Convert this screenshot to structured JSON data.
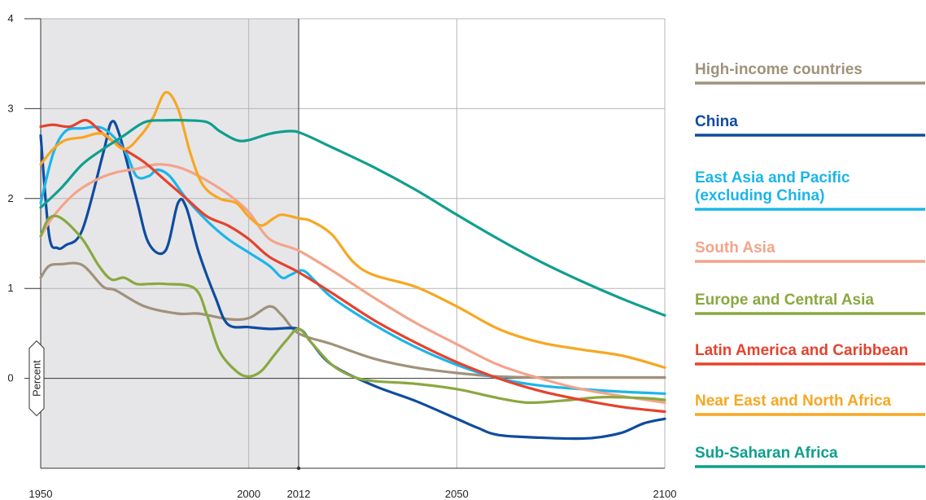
{
  "chart_data": {
    "type": "line",
    "xlim": [
      1950,
      2100
    ],
    "ylim": [
      -1,
      4
    ],
    "x_ticks": [
      1950,
      2000,
      2012,
      2050,
      2100
    ],
    "y_ticks": [
      0,
      1,
      2,
      3,
      4
    ],
    "x_tick_labels": [
      "1950",
      "2000",
      "2012",
      "2050",
      "2100"
    ],
    "y_tick_labels": [
      "0",
      "1",
      "2",
      "3",
      "4"
    ],
    "ylabel": "Percent",
    "historical_shaded_range": [
      1950,
      2012
    ],
    "reference_year": 2012,
    "grid": true,
    "legend_position": "right",
    "series": [
      {
        "name": "High-income countries",
        "color": "#a0927b",
        "points": [
          [
            1950,
            1.12
          ],
          [
            1952,
            1.25
          ],
          [
            1955,
            1.27
          ],
          [
            1960,
            1.26
          ],
          [
            1965,
            1.02
          ],
          [
            1968,
            0.98
          ],
          [
            1975,
            0.8
          ],
          [
            1983,
            0.72
          ],
          [
            1988,
            0.72
          ],
          [
            1995,
            0.66
          ],
          [
            2000,
            0.67
          ],
          [
            2005,
            0.8
          ],
          [
            2008,
            0.7
          ],
          [
            2012,
            0.5
          ],
          [
            2020,
            0.38
          ],
          [
            2030,
            0.22
          ],
          [
            2040,
            0.12
          ],
          [
            2050,
            0.06
          ],
          [
            2060,
            0.02
          ],
          [
            2070,
            0.01
          ],
          [
            2080,
            0.01
          ],
          [
            2100,
            0.01
          ]
        ]
      },
      {
        "name": "China",
        "color": "#0f4c9e",
        "points": [
          [
            1950,
            2.7
          ],
          [
            1952,
            1.6
          ],
          [
            1954,
            1.45
          ],
          [
            1956,
            1.48
          ],
          [
            1960,
            1.65
          ],
          [
            1965,
            2.5
          ],
          [
            1967,
            2.85
          ],
          [
            1969,
            2.7
          ],
          [
            1973,
            2.0
          ],
          [
            1976,
            1.5
          ],
          [
            1980,
            1.42
          ],
          [
            1983,
            1.95
          ],
          [
            1985,
            1.9
          ],
          [
            1988,
            1.4
          ],
          [
            1992,
            0.9
          ],
          [
            1995,
            0.6
          ],
          [
            2000,
            0.57
          ],
          [
            2005,
            0.55
          ],
          [
            2012,
            0.55
          ],
          [
            2015,
            0.4
          ],
          [
            2020,
            0.15
          ],
          [
            2030,
            -0.08
          ],
          [
            2040,
            -0.25
          ],
          [
            2050,
            -0.45
          ],
          [
            2055,
            -0.55
          ],
          [
            2060,
            -0.63
          ],
          [
            2070,
            -0.66
          ],
          [
            2080,
            -0.67
          ],
          [
            2085,
            -0.65
          ],
          [
            2090,
            -0.6
          ],
          [
            2095,
            -0.5
          ],
          [
            2100,
            -0.45
          ]
        ]
      },
      {
        "name": "East Asia and Pacific (excluding China)",
        "color": "#1cb5ea",
        "points": [
          [
            1950,
            1.95
          ],
          [
            1953,
            2.5
          ],
          [
            1956,
            2.75
          ],
          [
            1960,
            2.78
          ],
          [
            1965,
            2.78
          ],
          [
            1970,
            2.55
          ],
          [
            1973,
            2.25
          ],
          [
            1976,
            2.25
          ],
          [
            1978,
            2.32
          ],
          [
            1981,
            2.25
          ],
          [
            1985,
            2.0
          ],
          [
            1990,
            1.75
          ],
          [
            1995,
            1.55
          ],
          [
            2000,
            1.4
          ],
          [
            2005,
            1.25
          ],
          [
            2008,
            1.12
          ],
          [
            2010,
            1.15
          ],
          [
            2013,
            1.2
          ],
          [
            2016,
            1.08
          ],
          [
            2020,
            0.9
          ],
          [
            2030,
            0.6
          ],
          [
            2040,
            0.35
          ],
          [
            2050,
            0.15
          ],
          [
            2060,
            0.0
          ],
          [
            2070,
            -0.08
          ],
          [
            2080,
            -0.12
          ],
          [
            2090,
            -0.15
          ],
          [
            2100,
            -0.17
          ]
        ]
      },
      {
        "name": "South Asia",
        "color": "#f3a48b",
        "points": [
          [
            1950,
            1.58
          ],
          [
            1953,
            1.8
          ],
          [
            1958,
            2.05
          ],
          [
            1963,
            2.2
          ],
          [
            1968,
            2.29
          ],
          [
            1973,
            2.33
          ],
          [
            1978,
            2.38
          ],
          [
            1983,
            2.35
          ],
          [
            1988,
            2.25
          ],
          [
            1995,
            2.05
          ],
          [
            2000,
            1.85
          ],
          [
            2005,
            1.55
          ],
          [
            2012,
            1.42
          ],
          [
            2020,
            1.2
          ],
          [
            2030,
            0.9
          ],
          [
            2040,
            0.62
          ],
          [
            2050,
            0.38
          ],
          [
            2060,
            0.15
          ],
          [
            2070,
            0.0
          ],
          [
            2080,
            -0.12
          ],
          [
            2090,
            -0.2
          ],
          [
            2100,
            -0.27
          ]
        ]
      },
      {
        "name": "Europe and Central Asia",
        "color": "#8aa840",
        "points": [
          [
            1950,
            1.58
          ],
          [
            1952,
            1.78
          ],
          [
            1955,
            1.78
          ],
          [
            1960,
            1.55
          ],
          [
            1964,
            1.25
          ],
          [
            1967,
            1.1
          ],
          [
            1970,
            1.12
          ],
          [
            1973,
            1.05
          ],
          [
            1976,
            1.05
          ],
          [
            1980,
            1.05
          ],
          [
            1987,
            1.0
          ],
          [
            1990,
            0.7
          ],
          [
            1993,
            0.3
          ],
          [
            1997,
            0.08
          ],
          [
            2000,
            0.02
          ],
          [
            2003,
            0.08
          ],
          [
            2006,
            0.25
          ],
          [
            2009,
            0.42
          ],
          [
            2012,
            0.55
          ],
          [
            2015,
            0.4
          ],
          [
            2020,
            0.15
          ],
          [
            2025,
            0.02
          ],
          [
            2030,
            -0.03
          ],
          [
            2040,
            -0.06
          ],
          [
            2050,
            -0.12
          ],
          [
            2060,
            -0.22
          ],
          [
            2067,
            -0.27
          ],
          [
            2075,
            -0.25
          ],
          [
            2085,
            -0.21
          ],
          [
            2095,
            -0.22
          ],
          [
            2100,
            -0.24
          ]
        ]
      },
      {
        "name": "Latin America and Caribbean",
        "color": "#e4432d",
        "points": [
          [
            1950,
            2.8
          ],
          [
            1953,
            2.82
          ],
          [
            1957,
            2.8
          ],
          [
            1961,
            2.87
          ],
          [
            1965,
            2.72
          ],
          [
            1970,
            2.55
          ],
          [
            1975,
            2.4
          ],
          [
            1980,
            2.2
          ],
          [
            1985,
            2.0
          ],
          [
            1990,
            1.8
          ],
          [
            1995,
            1.7
          ],
          [
            2000,
            1.55
          ],
          [
            2005,
            1.35
          ],
          [
            2012,
            1.18
          ],
          [
            2020,
            0.95
          ],
          [
            2030,
            0.65
          ],
          [
            2040,
            0.4
          ],
          [
            2050,
            0.18
          ],
          [
            2060,
            0.0
          ],
          [
            2070,
            -0.14
          ],
          [
            2080,
            -0.24
          ],
          [
            2090,
            -0.32
          ],
          [
            2100,
            -0.37
          ]
        ]
      },
      {
        "name": "Near East and North Africa",
        "color": "#f7a722",
        "points": [
          [
            1950,
            2.38
          ],
          [
            1953,
            2.55
          ],
          [
            1956,
            2.65
          ],
          [
            1960,
            2.68
          ],
          [
            1965,
            2.72
          ],
          [
            1970,
            2.55
          ],
          [
            1974,
            2.7
          ],
          [
            1977,
            2.9
          ],
          [
            1980,
            3.18
          ],
          [
            1983,
            3.0
          ],
          [
            1986,
            2.5
          ],
          [
            1989,
            2.15
          ],
          [
            1993,
            2.0
          ],
          [
            1997,
            1.95
          ],
          [
            2000,
            1.8
          ],
          [
            2003,
            1.7
          ],
          [
            2006,
            1.78
          ],
          [
            2008,
            1.82
          ],
          [
            2012,
            1.78
          ],
          [
            2015,
            1.75
          ],
          [
            2020,
            1.6
          ],
          [
            2025,
            1.3
          ],
          [
            2030,
            1.15
          ],
          [
            2040,
            1.02
          ],
          [
            2050,
            0.8
          ],
          [
            2060,
            0.55
          ],
          [
            2070,
            0.4
          ],
          [
            2080,
            0.32
          ],
          [
            2090,
            0.25
          ],
          [
            2100,
            0.12
          ]
        ]
      },
      {
        "name": "Sub-Saharan Africa",
        "color": "#0f9f8e",
        "points": [
          [
            1950,
            1.9
          ],
          [
            1955,
            2.12
          ],
          [
            1960,
            2.38
          ],
          [
            1965,
            2.55
          ],
          [
            1970,
            2.7
          ],
          [
            1975,
            2.85
          ],
          [
            1980,
            2.87
          ],
          [
            1985,
            2.87
          ],
          [
            1990,
            2.85
          ],
          [
            1993,
            2.75
          ],
          [
            1997,
            2.65
          ],
          [
            2000,
            2.65
          ],
          [
            2005,
            2.72
          ],
          [
            2010,
            2.75
          ],
          [
            2013,
            2.72
          ],
          [
            2020,
            2.57
          ],
          [
            2030,
            2.35
          ],
          [
            2040,
            2.1
          ],
          [
            2050,
            1.82
          ],
          [
            2060,
            1.55
          ],
          [
            2070,
            1.3
          ],
          [
            2080,
            1.08
          ],
          [
            2090,
            0.88
          ],
          [
            2100,
            0.7
          ]
        ]
      }
    ]
  },
  "percent_label": "Percent"
}
